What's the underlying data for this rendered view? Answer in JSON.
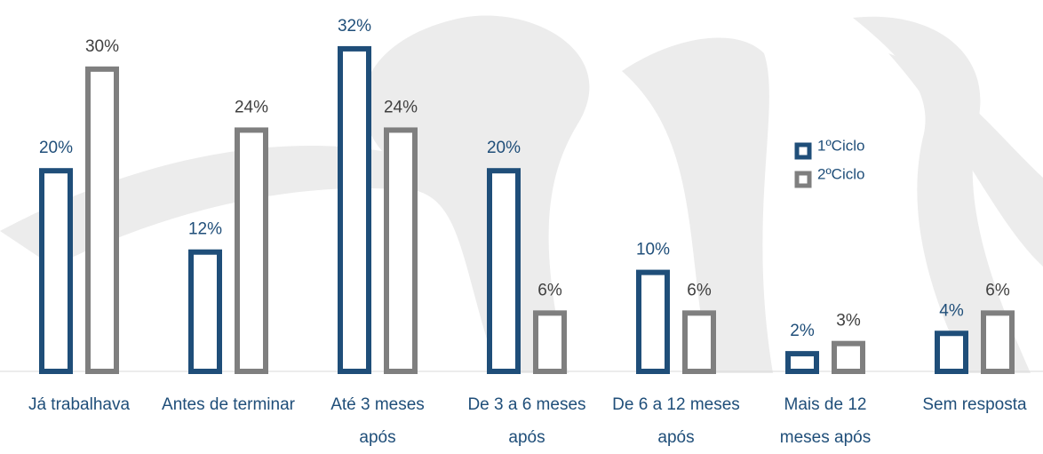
{
  "chart_data": {
    "type": "bar",
    "categories": [
      "Já trabalhava",
      "Antes de terminar",
      "Até 3 meses após",
      "De 3 a 6 meses após",
      "De 6 a 12 meses após",
      "Mais de 12 meses após",
      "Sem resposta"
    ],
    "series": [
      {
        "name": "1ºCiclo",
        "color": "#1f4e79",
        "values": [
          20,
          12,
          32,
          20,
          10,
          2,
          4
        ],
        "value_labels": [
          "20%",
          "12%",
          "32%",
          "20%",
          "10%",
          "2%",
          "4%"
        ]
      },
      {
        "name": "2ºCiclo",
        "color": "#7f7f7f",
        "values": [
          30,
          24,
          24,
          6,
          6,
          3,
          6
        ],
        "value_labels": [
          "30%",
          "24%",
          "24%",
          "6%",
          "6%",
          "3%",
          "6%"
        ]
      }
    ]
  }
}
